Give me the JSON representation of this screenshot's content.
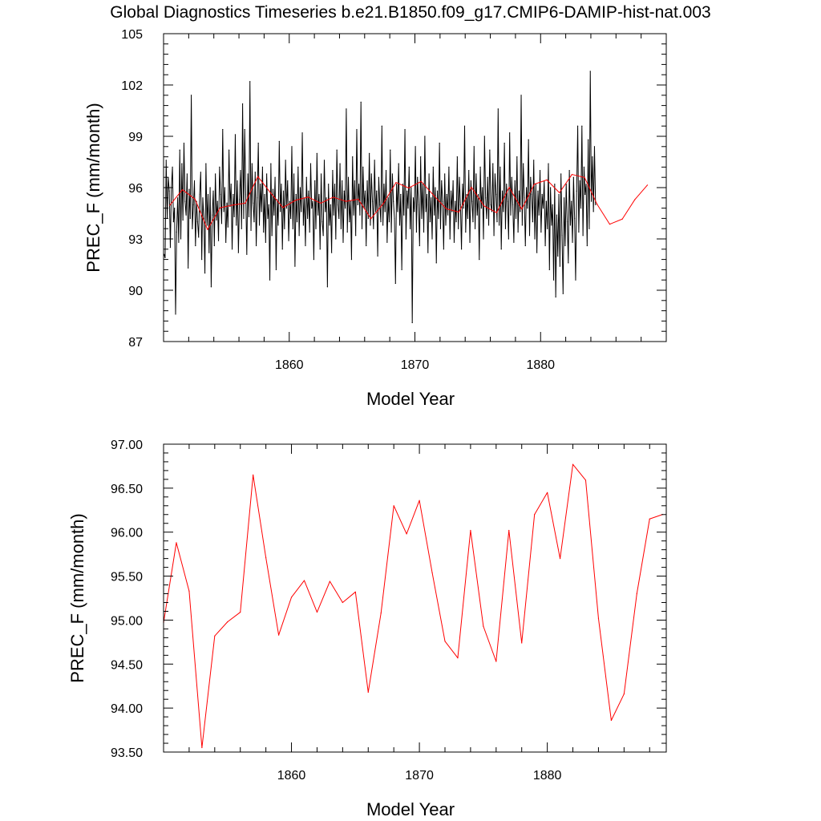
{
  "figure": {
    "title": "Global Diagnostics Timeseries b.e21.B1850.f09_g17.CMIP6-DAMIP-hist-nat.003"
  },
  "chart_data": [
    {
      "type": "line",
      "xlabel": "Model Year",
      "ylabel": "PREC_F (mm/month)",
      "xlim": [
        1850,
        1890
      ],
      "ylim": [
        87,
        105
      ],
      "xticks": [
        1860,
        1870,
        1880
      ],
      "xtick_labels": [
        "1860",
        "1870",
        "1880"
      ],
      "yticks": [
        87,
        90,
        93,
        96,
        99,
        102,
        105
      ],
      "ytick_labels": [
        "87",
        "90",
        "93",
        "96",
        "99",
        "102",
        "105"
      ],
      "grid": false,
      "series": [
        {
          "role": "monthly",
          "color": "#000000",
          "x_start": 1850.04,
          "x_step": 0.08333,
          "values": [
            92.1,
            91.9,
            97.6,
            94.2,
            96.6,
            95.8,
            92.5,
            96.0,
            97.2,
            94.0,
            94.8,
            88.6,
            93.4,
            95.4,
            92.8,
            98.2,
            93.0,
            97.4,
            94.1,
            98.6,
            95.2,
            94.4,
            96.8,
            91.3,
            95.9,
            94.2,
            101.4,
            93.6,
            95.0,
            96.4,
            92.6,
            95.2,
            94.0,
            93.1,
            95.6,
            96.9,
            91.8,
            95.4,
            94.2,
            91.0,
            97.4,
            93.8,
            95.6,
            92.2,
            96.0,
            90.2,
            94.4,
            95.8,
            92.6,
            96.8,
            94.1,
            95.2,
            92.9,
            97.2,
            95.6,
            93.9,
            99.4,
            94.6,
            96.0,
            92.8,
            95.1,
            93.7,
            98.2,
            94.9,
            96.2,
            92.4,
            95.6,
            94.3,
            99.1,
            93.8,
            96.4,
            92.2,
            95.3,
            97.0,
            93.6,
            100.9,
            94.2,
            99.4,
            95.6,
            92.1,
            96.8,
            94.3,
            102.2,
            93.5,
            97.4,
            95.1,
            94.0,
            96.9,
            92.6,
            95.4,
            98.6,
            93.8,
            96.2,
            94.6,
            97.2,
            93.4,
            95.6,
            92.8,
            96.8,
            94.2,
            95.0,
            90.6,
            97.4,
            93.2,
            95.9,
            94.4,
            96.6,
            91.2,
            95.3,
            93.8,
            98.7,
            94.6,
            96.2,
            92.4,
            95.8,
            93.6,
            97.6,
            94.8,
            96.4,
            92.9,
            95.2,
            94.2,
            98.4,
            93.6,
            96.8,
            91.4,
            95.6,
            94.0,
            97.2,
            93.2,
            96.0,
            94.6,
            99.2,
            93.8,
            95.4,
            92.6,
            96.6,
            94.2,
            95.8,
            93.4,
            97.4,
            94.8,
            95.2,
            91.8,
            96.4,
            93.6,
            98.0,
            94.4,
            95.6,
            92.4,
            96.8,
            94.0,
            93.2,
            97.6,
            94.6,
            95.4,
            90.2,
            96.2,
            93.8,
            95.0,
            92.2,
            97.0,
            94.4,
            96.2,
            93.0,
            98.2,
            95.0,
            94.2,
            97.4,
            93.6,
            96.4,
            92.8,
            95.8,
            94.8,
            100.6,
            93.4,
            96.6,
            94.0,
            95.2,
            91.8,
            97.8,
            94.4,
            96.4,
            93.2,
            99.4,
            95.0,
            96.2,
            94.4,
            101.0,
            93.6,
            97.2,
            94.8,
            95.8,
            92.6,
            96.4,
            94.2,
            98.0,
            93.8,
            96.8,
            95.2,
            93.6,
            97.6,
            94.6,
            95.8,
            92.0,
            96.6,
            95.0,
            94.0,
            99.6,
            93.8,
            96.2,
            94.6,
            97.0,
            92.8,
            95.4,
            94.0,
            98.2,
            93.4,
            96.8,
            95.2,
            94.2,
            90.4,
            96.2,
            94.6,
            97.4,
            93.8,
            95.6,
            91.2,
            96.2,
            94.4,
            99.4,
            93.0,
            95.8,
            94.8,
            97.2,
            93.6,
            96.0,
            88.1,
            95.4,
            94.6,
            98.4,
            93.4,
            96.6,
            95.0,
            92.6,
            97.8,
            94.2,
            96.2,
            93.4,
            99.0,
            94.6,
            95.6,
            92.2,
            96.8,
            94.0,
            95.4,
            93.0,
            97.2,
            94.4,
            96.0,
            91.6,
            95.8,
            94.2,
            98.6,
            93.6,
            96.4,
            95.2,
            92.4,
            96.8,
            93.8,
            95.6,
            94.4,
            97.2,
            93.0,
            95.8,
            94.6,
            96.4,
            92.8,
            95.2,
            94.0,
            97.8,
            93.6,
            96.6,
            95.0,
            92.4,
            96.2,
            94.8,
            99.6,
            93.4,
            95.6,
            94.2,
            97.0,
            92.8,
            96.4,
            95.2,
            94.0,
            98.4,
            93.6,
            96.8,
            94.4,
            95.6,
            91.8,
            97.2,
            94.8,
            96.0,
            93.0,
            99.0,
            95.4,
            94.2,
            96.6,
            93.8,
            98.2,
            95.0,
            94.6,
            97.4,
            93.2,
            96.8,
            95.6,
            94.0,
            100.6,
            93.8,
            97.2,
            92.4,
            95.8,
            94.6,
            98.6,
            93.6,
            96.2,
            95.2,
            93.0,
            99.2,
            94.4,
            96.6,
            95.0,
            92.8,
            96.4,
            94.2,
            97.8,
            93.4,
            95.8,
            94.6,
            101.4,
            93.8,
            97.4,
            95.4,
            92.6,
            96.0,
            94.8,
            98.8,
            93.2,
            96.6,
            95.6,
            94.0,
            97.6,
            93.0,
            96.2,
            92.2,
            95.8,
            94.4,
            97.0,
            93.4,
            95.6,
            94.8,
            96.4,
            92.6,
            95.2,
            93.6,
            97.4,
            91.2,
            96.0,
            93.8,
            95.0,
            90.6,
            96.2,
            89.6,
            94.4,
            92.0,
            95.6,
            91.4,
            96.8,
            93.2,
            89.8,
            95.4,
            92.6,
            96.2,
            94.0,
            91.6,
            97.0,
            93.8,
            95.2,
            92.8,
            96.6,
            94.2,
            90.6,
            95.8,
            99.6,
            93.4,
            96.4,
            94.8,
            99.6,
            93.2,
            97.2,
            95.6,
            96.2,
            92.6,
            98.8,
            93.6,
            102.8,
            95.2,
            97.8,
            94.6,
            98.4,
            95.0
          ]
        },
        {
          "role": "annual",
          "color": "#ff0000",
          "x": [
            1850.5,
            1851.5,
            1852.5,
            1853.5,
            1854.5,
            1855.5,
            1856.5,
            1857.5,
            1858.5,
            1859.5,
            1860.5,
            1861.5,
            1862.5,
            1863.5,
            1864.5,
            1865.5,
            1866.5,
            1867.5,
            1868.5,
            1869.5,
            1870.5,
            1871.5,
            1872.5,
            1873.5,
            1874.5,
            1875.5,
            1876.5,
            1877.5,
            1878.5,
            1879.5,
            1880.5,
            1881.5,
            1882.5,
            1883.5,
            1884.5,
            1885.5,
            1886.5,
            1887.5,
            1888.5
          ],
          "values": [
            94.97,
            95.88,
            95.33,
            93.55,
            94.82,
            94.98,
            95.09,
            96.65,
            95.71,
            94.83,
            95.26,
            95.45,
            95.09,
            95.44,
            95.2,
            95.32,
            94.18,
            95.08,
            96.3,
            95.98,
            96.36,
            95.54,
            94.76,
            94.57,
            96.02,
            94.93,
            94.53,
            96.02,
            94.74,
            96.2,
            96.45,
            95.7,
            96.77,
            96.59,
            95.02,
            93.86,
            94.16,
            95.3,
            96.15
          ]
        }
      ]
    },
    {
      "type": "line",
      "xlabel": "Model Year",
      "ylabel": "PREC_F (mm/month)",
      "xlim": [
        1850,
        1889.3
      ],
      "ylim": [
        93.5,
        97.0
      ],
      "xticks": [
        1860,
        1870,
        1880
      ],
      "xtick_labels": [
        "1860",
        "1870",
        "1880"
      ],
      "yticks": [
        93.5,
        94.0,
        94.5,
        95.0,
        95.5,
        96.0,
        96.5,
        97.0
      ],
      "ytick_labels": [
        "93.50",
        "94.00",
        "94.50",
        "95.00",
        "95.50",
        "96.00",
        "96.50",
        "97.00"
      ],
      "grid": false,
      "series": [
        {
          "role": "annual",
          "color": "#ff0000",
          "x": [
            1850,
            1851,
            1852,
            1853,
            1854,
            1855,
            1856,
            1857,
            1858,
            1859,
            1860,
            1861,
            1862,
            1863,
            1864,
            1865,
            1866,
            1867,
            1868,
            1869,
            1870,
            1871,
            1872,
            1873,
            1874,
            1875,
            1876,
            1877,
            1878,
            1879,
            1880,
            1881,
            1882,
            1883,
            1884,
            1885,
            1886,
            1887,
            1888,
            1889
          ],
          "values": [
            94.97,
            95.88,
            95.33,
            93.55,
            94.82,
            94.98,
            95.09,
            96.65,
            95.71,
            94.83,
            95.26,
            95.45,
            95.09,
            95.44,
            95.2,
            95.32,
            94.18,
            95.08,
            96.3,
            95.98,
            96.36,
            95.54,
            94.76,
            94.57,
            96.02,
            94.93,
            94.53,
            96.02,
            94.74,
            96.2,
            96.45,
            95.7,
            96.77,
            96.59,
            95.02,
            93.86,
            94.16,
            95.3,
            96.15,
            96.2
          ]
        }
      ]
    }
  ]
}
